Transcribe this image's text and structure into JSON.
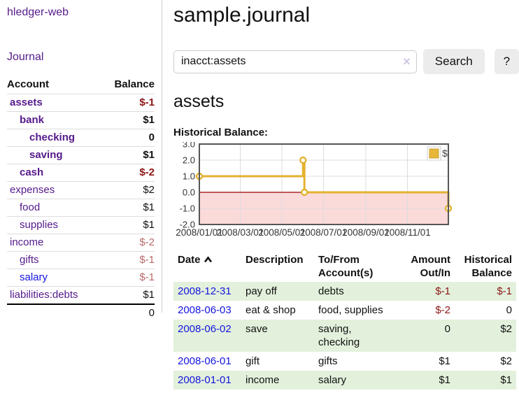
{
  "app": {
    "title": "hledger-web",
    "nav_journal_label": "Journal"
  },
  "sidebar": {
    "headers": {
      "account": "Account",
      "balance": "Balance"
    },
    "accounts": [
      {
        "name": "assets",
        "balance": "$-1",
        "indent": 0,
        "bold": true,
        "link_color": "purple"
      },
      {
        "name": "bank",
        "balance": "$1",
        "indent": 1,
        "bold": true,
        "link_color": "purple"
      },
      {
        "name": "checking",
        "balance": "0",
        "indent": 2,
        "bold": true,
        "link_color": "purple"
      },
      {
        "name": "saving",
        "balance": "$1",
        "indent": 2,
        "bold": true,
        "link_color": "purple"
      },
      {
        "name": "cash",
        "balance": "$-2",
        "indent": 1,
        "bold": true,
        "link_color": "purple"
      },
      {
        "name": "expenses",
        "balance": "$2",
        "indent": 0,
        "bold": false,
        "link_color": "purple"
      },
      {
        "name": "food",
        "balance": "$1",
        "indent": 1,
        "bold": false,
        "link_color": "purple"
      },
      {
        "name": "supplies",
        "balance": "$1",
        "indent": 1,
        "bold": false,
        "link_color": "purple"
      },
      {
        "name": "income",
        "balance": "$-2",
        "indent": 0,
        "bold": false,
        "link_color": "purple"
      },
      {
        "name": "gifts",
        "balance": "$-1",
        "indent": 1,
        "bold": false,
        "link_color": "purple"
      },
      {
        "name": "salary",
        "balance": "$-1",
        "indent": 1,
        "bold": false,
        "link_color": "blue"
      },
      {
        "name": "liabilities:debts",
        "balance": "$1",
        "indent": 0,
        "bold": false,
        "link_color": "purple"
      }
    ],
    "total": "0"
  },
  "header": {
    "title": "sample.journal"
  },
  "search": {
    "value": "inacct:assets",
    "clear_icon": "×",
    "search_button": "Search",
    "help_button": "?"
  },
  "account_view": {
    "heading": "assets",
    "chart_title": "Historical Balance:"
  },
  "chart_data": {
    "type": "line",
    "step": true,
    "title": "Historical Balance:",
    "series": [
      {
        "name": "$",
        "points": [
          [
            "2008-01-01",
            1
          ],
          [
            "2008-06-01",
            2
          ],
          [
            "2008-06-03",
            0
          ],
          [
            "2008-12-31",
            -1
          ]
        ]
      }
    ],
    "ylim": [
      -2,
      3
    ],
    "yticks": [
      "3.0",
      "2.0",
      "1.0",
      "0.0",
      "-1.0",
      "-2.0"
    ],
    "xticks": [
      "2008/01/01",
      "2008/03/01",
      "2008/05/01",
      "2008/07/01",
      "2008/09/01",
      "2008/11/01"
    ],
    "x_range_days": [
      "2008-01-01",
      "2008-12-31"
    ],
    "legend": {
      "label": "$",
      "position": "top-right"
    },
    "grid": true,
    "colors": {
      "line": "#e3b230",
      "marker_fill": "#ffffff",
      "legend_swatch": "#e8b73a",
      "negative_region": "#fbdada",
      "zero_line": "#990000",
      "gridline": "#dcdcdc",
      "frame": "#555555"
    }
  },
  "register": {
    "headers": {
      "date": "Date",
      "description": "Description",
      "accounts": "To/From Account(s)",
      "amount": "Amount Out/In",
      "balance": "Historical Balance"
    },
    "rows": [
      {
        "date": "2008-12-31",
        "description": "pay off",
        "accounts": "debts",
        "amount": "$-1",
        "balance": "$-1"
      },
      {
        "date": "2008-06-03",
        "description": "eat & shop",
        "accounts": "food, supplies",
        "amount": "$-2",
        "balance": "0"
      },
      {
        "date": "2008-06-02",
        "description": "save",
        "accounts": "saving, checking",
        "amount": "0",
        "balance": "$2"
      },
      {
        "date": "2008-06-01",
        "description": "gift",
        "accounts": "gifts",
        "amount": "$1",
        "balance": "$2"
      },
      {
        "date": "2008-01-01",
        "description": "income",
        "accounts": "salary",
        "amount": "$1",
        "balance": "$1"
      }
    ]
  },
  "colors": {
    "link_purple": "#551a8b",
    "link_blue": "#1414dd",
    "negative_strong": "#8b1515",
    "negative_muted": "#b96a6a",
    "row_stripe_green": "#e3f1dc",
    "text": "#111111"
  }
}
